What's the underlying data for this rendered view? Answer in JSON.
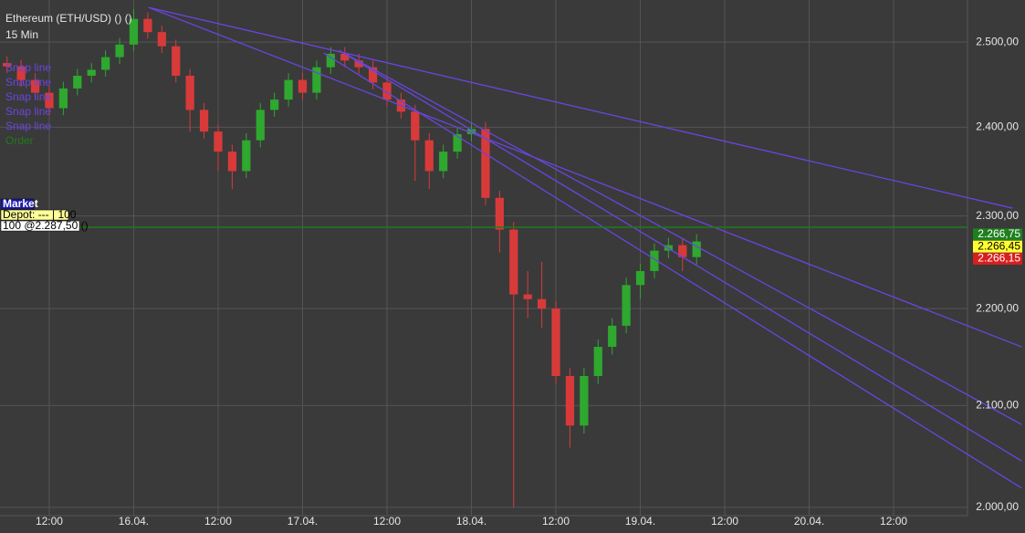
{
  "chart_data": {
    "type": "candlestick",
    "title": "Ethereum (ETH/USD) () ()",
    "subtitle": "15 Min",
    "log": true,
    "grid": true,
    "up_color": "#2ea82e",
    "down_color": "#d83a3a",
    "x": [
      6,
      8,
      10,
      12,
      14,
      16,
      18,
      20,
      22,
      24,
      26,
      28,
      30,
      32,
      34,
      36,
      38,
      40,
      42,
      44,
      46,
      48,
      50,
      52,
      54,
      56,
      58,
      60,
      62,
      64,
      66,
      68,
      70,
      72,
      74,
      76,
      78,
      80,
      82,
      84,
      86,
      88,
      90,
      92,
      94,
      96,
      98,
      100,
      102,
      104
    ],
    "open": [
      2475,
      2471,
      2455,
      2440,
      2422,
      2445,
      2460,
      2467,
      2482,
      2497,
      2528,
      2512,
      2495,
      2460,
      2420,
      2395,
      2372,
      2350,
      2385,
      2420,
      2432,
      2455,
      2440,
      2470,
      2486,
      2478,
      2470,
      2452,
      2432,
      2418,
      2385,
      2350,
      2372,
      2392,
      2398,
      2320,
      2285,
      2215,
      2210,
      2200,
      2130,
      2080,
      2130,
      2160,
      2182,
      2225,
      2240,
      2262,
      2268,
      2255
    ],
    "high": [
      2483,
      2479,
      2463,
      2448,
      2453,
      2468,
      2475,
      2490,
      2505,
      2540,
      2536,
      2520,
      2503,
      2468,
      2428,
      2403,
      2380,
      2393,
      2428,
      2440,
      2463,
      2463,
      2478,
      2494,
      2494,
      2486,
      2478,
      2460,
      2440,
      2426,
      2393,
      2380,
      2400,
      2406,
      2406,
      2328,
      2293,
      2240,
      2250,
      2208,
      2138,
      2138,
      2168,
      2190,
      2233,
      2248,
      2270,
      2276,
      2276,
      2280
    ],
    "low": [
      2463,
      2447,
      2432,
      2414,
      2414,
      2437,
      2452,
      2459,
      2474,
      2489,
      2504,
      2487,
      2452,
      2395,
      2387,
      2350,
      2330,
      2342,
      2377,
      2412,
      2424,
      2432,
      2432,
      2462,
      2470,
      2462,
      2444,
      2424,
      2410,
      2339,
      2330,
      2342,
      2364,
      2384,
      2312,
      2260,
      2000,
      2190,
      2180,
      2122,
      2058,
      2072,
      2122,
      2152,
      2174,
      2210,
      2232,
      2254,
      2240,
      2247
    ],
    "close": [
      2471,
      2455,
      2440,
      2422,
      2445,
      2460,
      2467,
      2482,
      2497,
      2528,
      2512,
      2495,
      2460,
      2420,
      2395,
      2372,
      2350,
      2385,
      2420,
      2432,
      2455,
      2440,
      2470,
      2486,
      2478,
      2470,
      2452,
      2432,
      2418,
      2385,
      2350,
      2372,
      2392,
      2398,
      2320,
      2285,
      2215,
      2210,
      2200,
      2130,
      2080,
      2130,
      2160,
      2182,
      2225,
      2240,
      2262,
      2268,
      2255,
      2272
    ],
    "xlim": [
      5,
      142.5
    ],
    "xticks": [
      {
        "value": 12,
        "label": "12:00"
      },
      {
        "value": 24,
        "label": "16.04."
      },
      {
        "value": 36,
        "label": "12:00"
      },
      {
        "value": 48,
        "label": "17.04."
      },
      {
        "value": 60,
        "label": "12:00"
      },
      {
        "value": 72,
        "label": "18.04."
      },
      {
        "value": 84,
        "label": "12:00"
      },
      {
        "value": 96,
        "label": "19.04."
      },
      {
        "value": 108,
        "label": "12:00"
      },
      {
        "value": 120,
        "label": "20.04."
      },
      {
        "value": 132,
        "label": "12:00"
      }
    ],
    "ylim": [
      1992,
      2551
    ],
    "yticks": [
      {
        "value": 2000,
        "label": "2.000,00"
      },
      {
        "value": 2100,
        "label": "2.100,00"
      },
      {
        "value": 2200,
        "label": "2.200,00"
      },
      {
        "value": 2300,
        "label": "2.300,00"
      },
      {
        "value": 2400,
        "label": "2.400,00"
      },
      {
        "value": 2500,
        "label": "2.500,00"
      }
    ],
    "trendlines": [
      {
        "name": "Snap line",
        "color": "#6a45e0",
        "x": [
          26.1,
          148.9
        ],
        "y": [
          2542,
          2308.6
        ]
      },
      {
        "name": "Snap line",
        "color": "#6a45e0",
        "x": [
          26.1,
          150.2
        ],
        "y": [
          2542,
          2160
        ]
      },
      {
        "name": "Snap line",
        "color": "#6a45e0",
        "x": [
          53.2,
          150.2
        ],
        "y": [
          2490,
          2081
        ]
      },
      {
        "name": "Snap line",
        "color": "#6a45e0",
        "x": [
          53.2,
          150.2
        ],
        "y": [
          2490,
          2045
        ]
      },
      {
        "name": "Snap line",
        "color": "#6a45e0",
        "x": [
          51,
          150.2
        ],
        "y": [
          2487,
          2018.5
        ]
      }
    ],
    "order": {
      "name": "Order",
      "color": "#1e7a1e",
      "value": 2287.5
    },
    "order_boxes": [
      "Market",
      "Depot: --- | 100",
      "100 @2.287,50 ()"
    ],
    "price_labels": [
      {
        "value": 2266.75,
        "label": "2.266,75",
        "color": "#1f7f1f"
      },
      {
        "value": 2266.45,
        "label": "2.266,45",
        "color": "#ffff33"
      },
      {
        "value": 2266.15,
        "label": "2.266,15",
        "color": "#d81e1e"
      }
    ]
  }
}
